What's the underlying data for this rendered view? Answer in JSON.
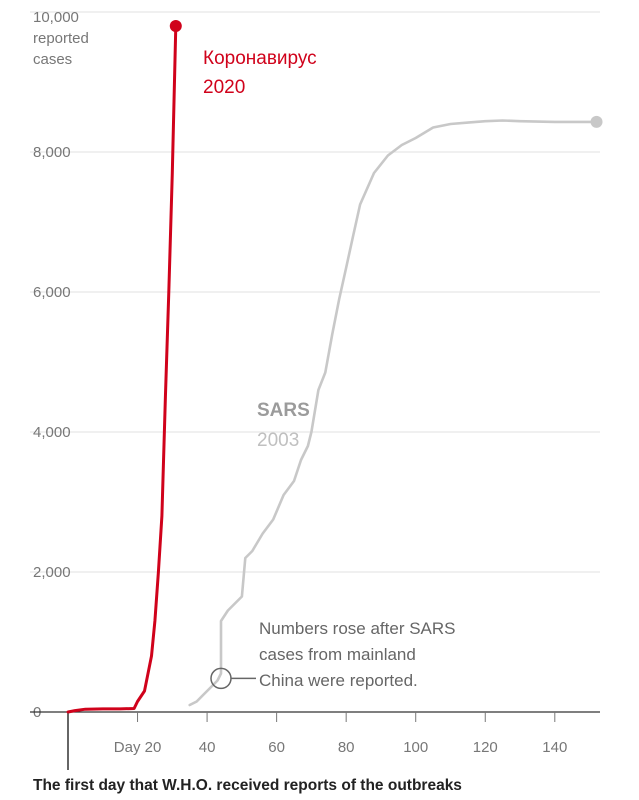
{
  "chart_data": {
    "type": "line",
    "ylabel_lines": [
      "10,000",
      "reported",
      "cases"
    ],
    "yticks": [
      {
        "value": 0,
        "label": "0"
      },
      {
        "value": 2000,
        "label": "2,000"
      },
      {
        "value": 4000,
        "label": "4,000"
      },
      {
        "value": 6000,
        "label": "6,000"
      },
      {
        "value": 8000,
        "label": "8,000"
      }
    ],
    "xticks": [
      {
        "value": 20,
        "label": "Day 20"
      },
      {
        "value": 40,
        "label": "40"
      },
      {
        "value": 60,
        "label": "60"
      },
      {
        "value": 80,
        "label": "80"
      },
      {
        "value": 100,
        "label": "100"
      },
      {
        "value": 120,
        "label": "120"
      },
      {
        "value": 140,
        "label": "140"
      }
    ],
    "xlim": [
      0,
      153
    ],
    "ylim": [
      0,
      10000
    ],
    "grid": true,
    "series": [
      {
        "name": "Коронавирус",
        "year": "2020",
        "color": "#d0021b",
        "points": [
          [
            0,
            0
          ],
          [
            2,
            20
          ],
          [
            5,
            40
          ],
          [
            10,
            45
          ],
          [
            15,
            45
          ],
          [
            19,
            50
          ],
          [
            20,
            150
          ],
          [
            22,
            300
          ],
          [
            23,
            550
          ],
          [
            24,
            800
          ],
          [
            25,
            1300
          ],
          [
            26,
            2000
          ],
          [
            27,
            2800
          ],
          [
            28,
            4500
          ],
          [
            29,
            6000
          ],
          [
            30,
            7700
          ],
          [
            31,
            9800
          ]
        ]
      },
      {
        "name": "SARS",
        "year": "2003",
        "color": "#c8c8c8",
        "points": [
          [
            35,
            100
          ],
          [
            37,
            150
          ],
          [
            39,
            250
          ],
          [
            41,
            350
          ],
          [
            43,
            450
          ],
          [
            44,
            550
          ],
          [
            44,
            1300
          ],
          [
            46,
            1450
          ],
          [
            48,
            1550
          ],
          [
            50,
            1650
          ],
          [
            51,
            2200
          ],
          [
            53,
            2300
          ],
          [
            56,
            2550
          ],
          [
            59,
            2750
          ],
          [
            62,
            3100
          ],
          [
            65,
            3300
          ],
          [
            67,
            3600
          ],
          [
            69,
            3800
          ],
          [
            70,
            4000
          ],
          [
            72,
            4600
          ],
          [
            74,
            4850
          ],
          [
            76,
            5400
          ],
          [
            78,
            5900
          ],
          [
            80,
            6350
          ],
          [
            82,
            6800
          ],
          [
            84,
            7250
          ],
          [
            88,
            7700
          ],
          [
            92,
            7950
          ],
          [
            96,
            8100
          ],
          [
            100,
            8200
          ],
          [
            105,
            8350
          ],
          [
            110,
            8400
          ],
          [
            115,
            8420
          ],
          [
            120,
            8440
          ],
          [
            125,
            8450
          ],
          [
            130,
            8440
          ],
          [
            140,
            8430
          ],
          [
            152,
            8430
          ]
        ]
      }
    ],
    "annotation_lines": [
      "Numbers rose after SARS",
      "cases from mainland",
      "China were reported."
    ],
    "annotation_point": {
      "x": 44,
      "y": 480
    },
    "caption": "The first day that W.H.O. received reports of the outbreaks"
  }
}
